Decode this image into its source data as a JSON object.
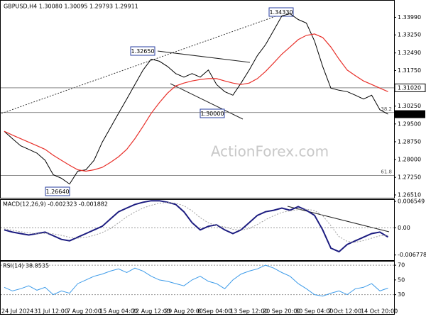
{
  "chart_data": [
    {
      "type": "line",
      "title": "GBPUSD,H4  1.30080 1.30095 1.29793 1.29911",
      "watermark": "ActionForex.com",
      "annotations": [
        "1.34330",
        "1.32650",
        "1.30000",
        "1.26640"
      ],
      "series": [
        {
          "color": "#000000",
          "width": 1,
          "values": [
            1.2919,
            1.2888,
            1.2858,
            1.2843,
            1.2827,
            1.2797,
            1.2736,
            1.2721,
            1.2697,
            1.2751,
            1.2757,
            1.2797,
            1.2873,
            1.2934,
            1.2995,
            1.3055,
            1.3116,
            1.3177,
            1.3223,
            1.3214,
            1.3192,
            1.3162,
            1.3147,
            1.3162,
            1.3147,
            1.3177,
            1.3116,
            1.3086,
            1.3071,
            1.3122,
            1.3177,
            1.3238,
            1.3284,
            1.3344,
            1.3405,
            1.3414,
            1.339,
            1.3375,
            1.3299,
            1.3192,
            1.3101,
            1.3092,
            1.3086,
            1.3071,
            1.3055,
            1.3071,
            1.301,
            1.29911
          ]
        },
        {
          "color": "#e8302a",
          "width": 1.2,
          "values": [
            1.2919,
            1.2903,
            1.2888,
            1.2873,
            1.2858,
            1.2843,
            1.2818,
            1.2797,
            1.2776,
            1.2757,
            1.2751,
            1.2757,
            1.2767,
            1.2788,
            1.2812,
            1.2843,
            1.2888,
            1.294,
            1.2995,
            1.304,
            1.308,
            1.311,
            1.3122,
            1.3131,
            1.3137,
            1.3141,
            1.3141,
            1.3131,
            1.3122,
            1.3116,
            1.3122,
            1.3141,
            1.3171,
            1.3207,
            1.3244,
            1.3274,
            1.3305,
            1.3323,
            1.3329,
            1.3314,
            1.3274,
            1.3223,
            1.3177,
            1.3153,
            1.3131,
            1.3116,
            1.3101,
            1.3086
          ]
        }
      ],
      "levels": [
        {
          "name": "38.2",
          "value": 1.2998
        },
        {
          "name": "61.8",
          "value": 1.2733
        }
      ],
      "ylim": [
        1.2636,
        1.3469
      ],
      "yticks": [
        {
          "value": 1.3399,
          "label": "1.33990"
        },
        {
          "value": 1.3325,
          "label": "1.33250"
        },
        {
          "value": 1.3249,
          "label": "1.32490"
        },
        {
          "value": 1.3175,
          "label": "1.31750"
        },
        {
          "value": 1.3102,
          "label": "1.31020",
          "line": true,
          "box": "outline"
        },
        {
          "value": 1.3025,
          "label": "1.30250"
        },
        {
          "value": 1.29911,
          "label": "1.29911",
          "box": "fill"
        },
        {
          "value": 1.295,
          "label": "1.29500"
        },
        {
          "value": 1.2875,
          "label": "1.28750"
        },
        {
          "value": 1.28,
          "label": "1.28000"
        },
        {
          "value": 1.2725,
          "label": "1.27250"
        },
        {
          "value": 1.2651,
          "label": "1.26510"
        }
      ]
    },
    {
      "type": "line",
      "title": "MACD(12,26,9) -0.002323 -0.001882",
      "series": [
        {
          "color": "#1c1c80",
          "width": 2,
          "values": [
            -0.00054,
            -0.00109,
            -0.00145,
            -0.00181,
            -0.00145,
            -0.00109,
            -0.00199,
            -0.0029,
            -0.00326,
            -0.00235,
            -0.00145,
            -0.00054,
            0.00036,
            0.00217,
            0.00398,
            0.00489,
            0.00579,
            0.00634,
            0.0067,
            0.0067,
            0.00634,
            0.00579,
            0.00398,
            0.00127,
            -0.00054,
            0.00036,
            0.00072,
            -0.00054,
            -0.00145,
            -0.00054,
            0.00127,
            0.00308,
            0.00398,
            0.00434,
            0.00489,
            0.00434,
            0.00525,
            0.00434,
            0.00308,
            -0.00054,
            -0.00507,
            -0.00597,
            -0.00416,
            -0.00326,
            -0.00235,
            -0.00145,
            -0.00109,
            -0.002323
          ]
        },
        {
          "color": "#a0a0a0",
          "width": 1,
          "dashed": true,
          "values": [
            -0.0003,
            -0.0006,
            -0.001,
            -0.0013,
            -0.0015,
            -0.0014,
            -0.0015,
            -0.0019,
            -0.0024,
            -0.0026,
            -0.0024,
            -0.0019,
            -0.0012,
            -0.0002,
            0.0012,
            0.0027,
            0.0039,
            0.0049,
            0.0056,
            0.0061,
            0.0063,
            0.0061,
            0.0055,
            0.0042,
            0.0025,
            0.0012,
            0.0006,
            0.0002,
            -0.0004,
            -0.0006,
            -0.0002,
            0.0008,
            0.002,
            0.003,
            0.0038,
            0.0042,
            0.0045,
            0.0046,
            0.0043,
            0.003,
            0.0005,
            -0.0022,
            -0.0034,
            -0.0036,
            -0.0032,
            -0.0026,
            -0.002,
            -0.001882
          ]
        }
      ],
      "ylim": [
        -0.00824,
        0.00692
      ],
      "yticks": [
        0.006549,
        {
          "value": 0,
          "label": "0.00",
          "line": true
        },
        -0.006778
      ]
    },
    {
      "type": "line",
      "title": "RSI(14) 38.8535",
      "categories": [
        "24 Jul 2024",
        null,
        null,
        null,
        "31 Jul 12:00",
        null,
        null,
        null,
        "7 Aug 20:00",
        null,
        null,
        null,
        "15 Aug 04:00",
        null,
        null,
        null,
        "22 Aug 12:00",
        null,
        null,
        null,
        "29 Aug 20:00",
        null,
        null,
        null,
        "6 Sep 04:00",
        null,
        null,
        null,
        "13 Sep 12:00",
        null,
        null,
        null,
        "20 Sep 20:00",
        null,
        null,
        null,
        "30 Sep 04:00",
        null,
        null,
        null,
        "7 Oct 12:00",
        null,
        null,
        null,
        "14 Oct 20:00",
        null,
        null,
        null
      ],
      "series": [
        {
          "color": "#3d9be9",
          "width": 1,
          "values": [
            40,
            35,
            38,
            42,
            36,
            40,
            30,
            35,
            32,
            45,
            50,
            55,
            58,
            62,
            65,
            60,
            66,
            62,
            55,
            50,
            48,
            45,
            42,
            50,
            55,
            48,
            45,
            38,
            50,
            58,
            62,
            65,
            70,
            66,
            60,
            55,
            45,
            38,
            30,
            28,
            32,
            35,
            30,
            38,
            40,
            45,
            35,
            38.8535
          ]
        }
      ],
      "ylim": [
        2.7,
        74.9
      ],
      "yticks": [
        {
          "value": 70,
          "label": "70",
          "line": true
        },
        50,
        {
          "value": 30,
          "label": "30",
          "line": true
        }
      ]
    }
  ]
}
